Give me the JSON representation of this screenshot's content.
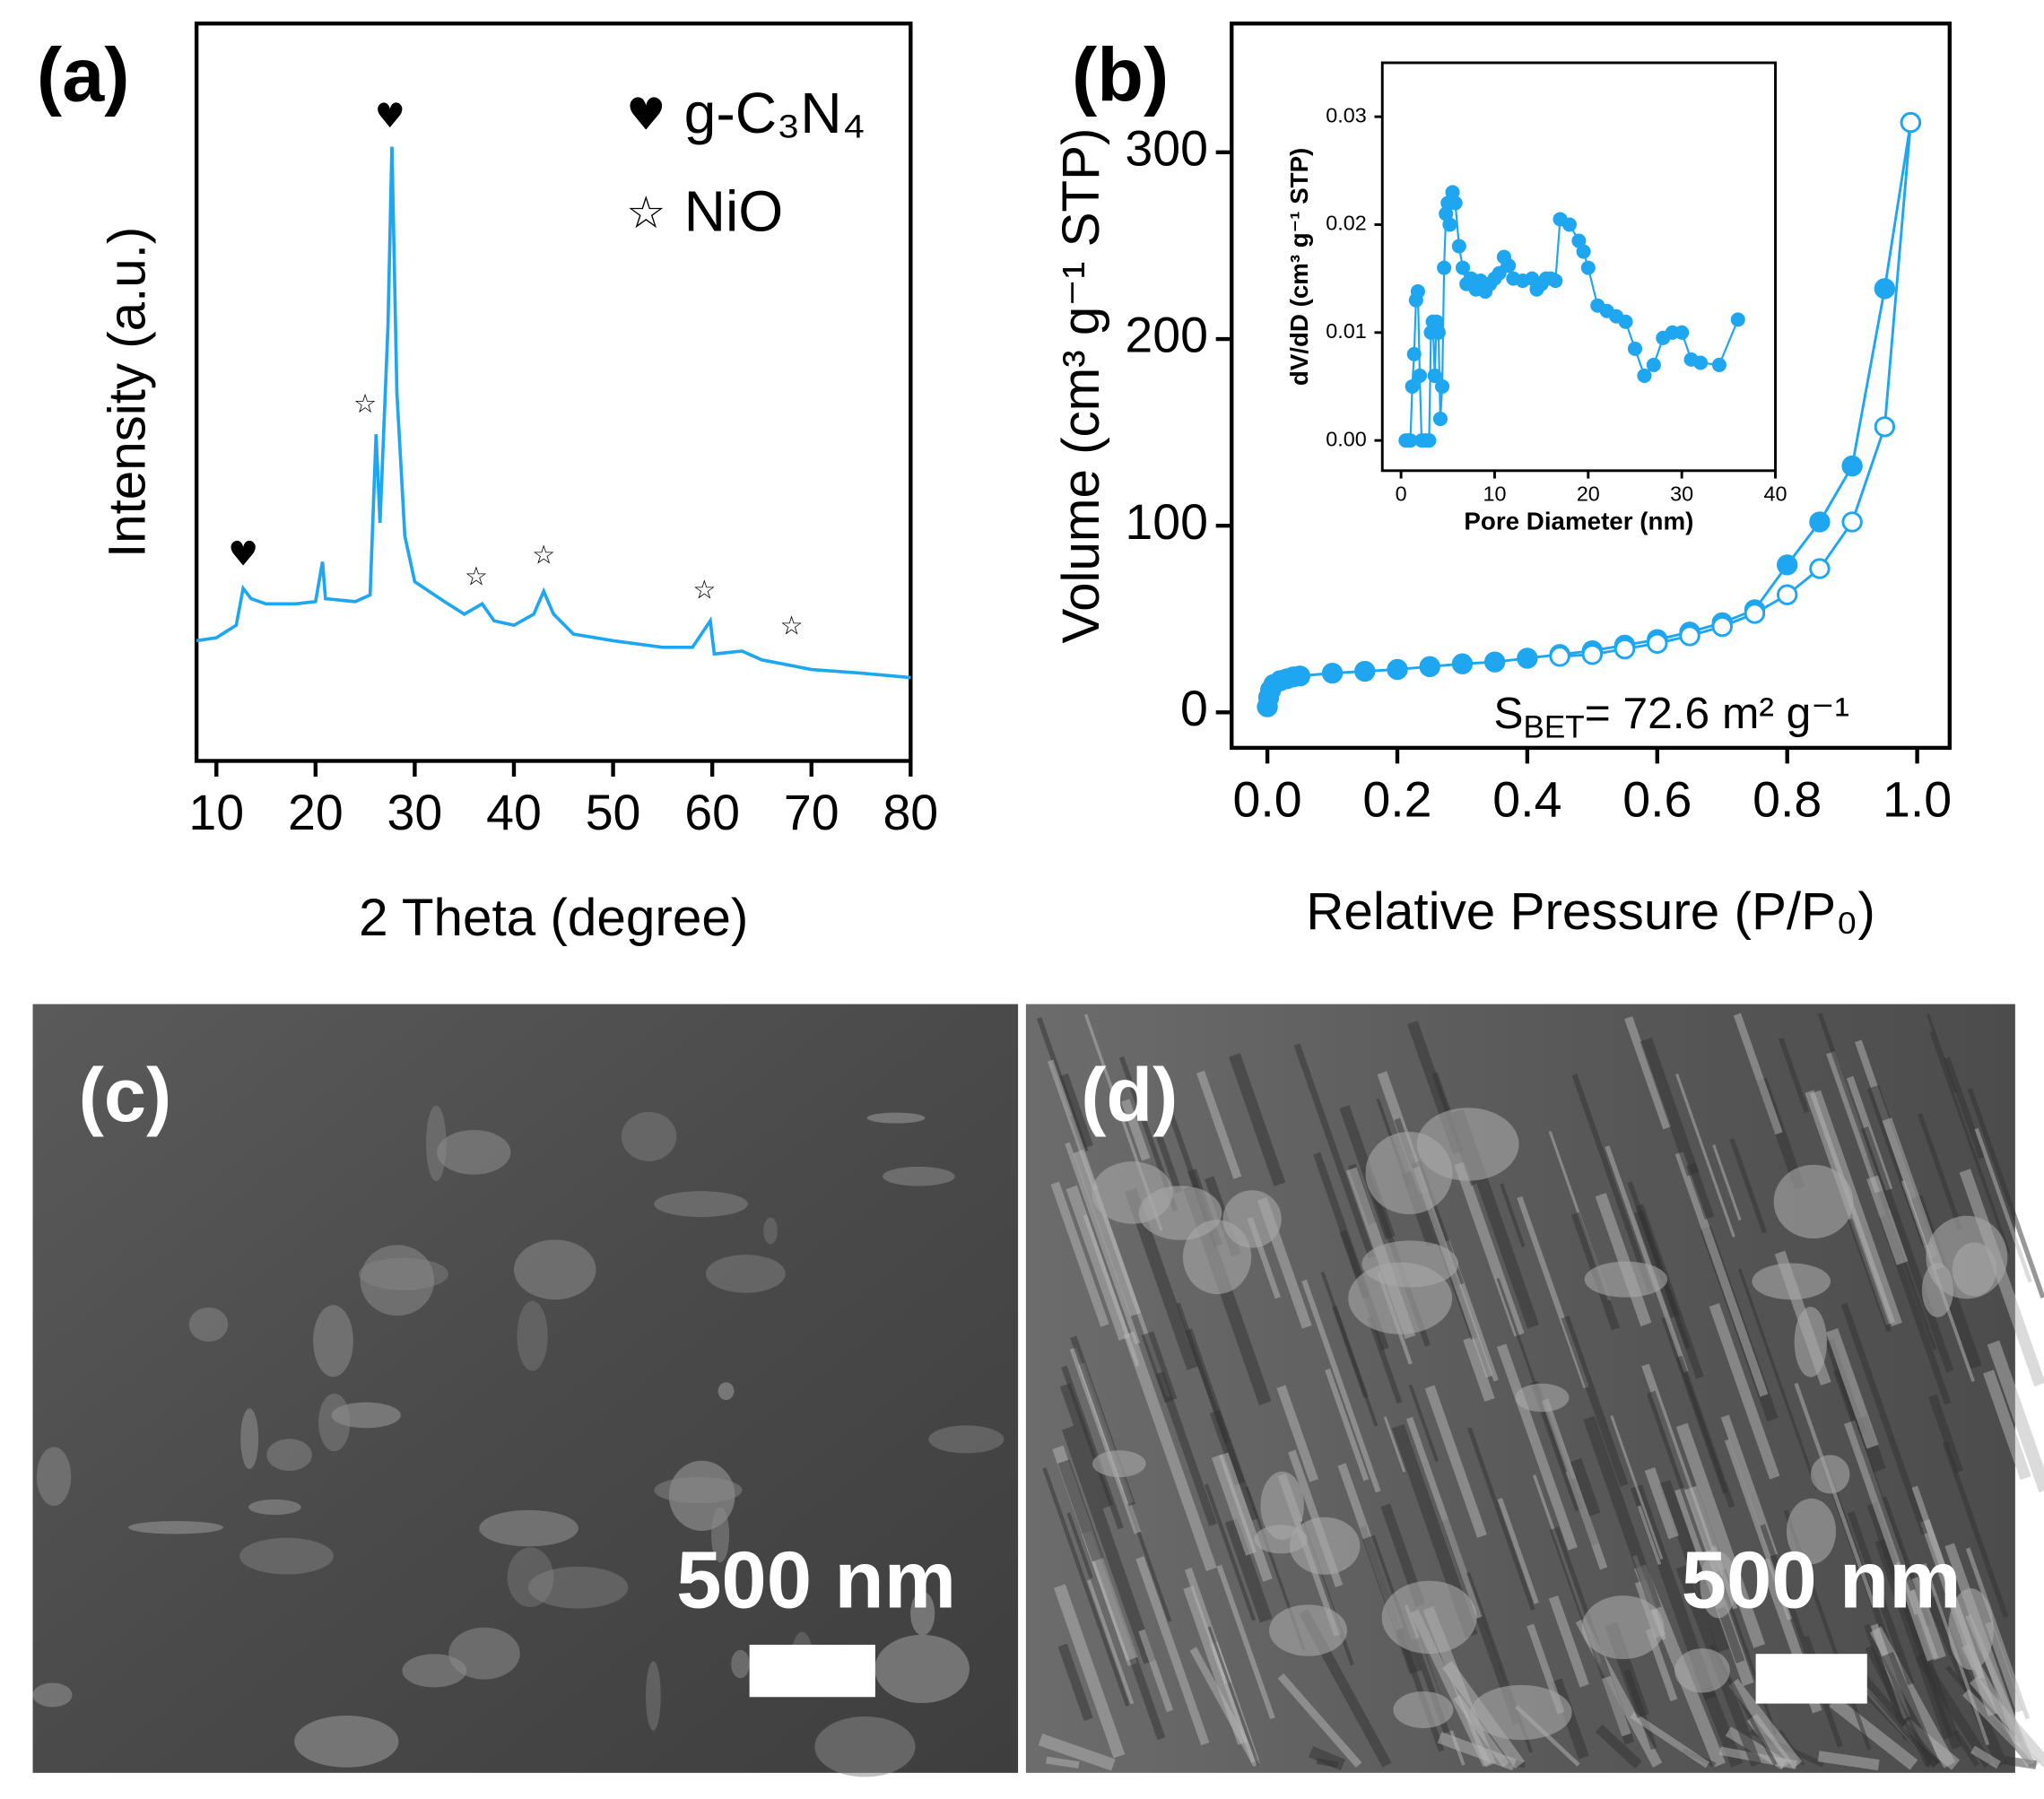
{
  "chart_data": [
    {
      "type": "line",
      "panel_label": "(a)",
      "x_label": "2 Theta (degree)",
      "y_label": "Intensity (a.u.)",
      "xlim": [
        8,
        80
      ],
      "xticks": [
        10,
        20,
        30,
        40,
        50,
        60,
        70,
        80
      ],
      "ylim": [
        0,
        100
      ],
      "series": [
        {
          "color": "#1ea7f0",
          "x": [
            8,
            10,
            12,
            12.7,
            13.5,
            15,
            18,
            20,
            20.7,
            21,
            24,
            25.5,
            26.1,
            26.5,
            27.3,
            27.7,
            28.2,
            29,
            30,
            33,
            35,
            36.8,
            38,
            40,
            42,
            43,
            44,
            46,
            50,
            55,
            58,
            59.8,
            60.2,
            63,
            65,
            70,
            75,
            80
          ],
          "values": [
            16.3,
            16.7,
            18.4,
            23.4,
            22.0,
            21.3,
            21.3,
            21.6,
            27.0,
            22.0,
            21.6,
            22.5,
            44.3,
            32.3,
            58.9,
            83.3,
            50.0,
            30.5,
            24.3,
            21.6,
            19.9,
            21.3,
            19.0,
            18.4,
            19.9,
            23.0,
            19.9,
            17.2,
            16.3,
            15.4,
            15.4,
            19.0,
            14.5,
            14.9,
            13.7,
            12.4,
            11.9,
            11.3
          ]
        }
      ],
      "annotations": [
        {
          "text": "♥",
          "x": 12.7,
          "y": 27.8
        },
        {
          "text": "♥",
          "x": 27.5,
          "y": 87.2
        },
        {
          "text": "☆",
          "x": 25.0,
          "y": 48.2
        },
        {
          "text": "☆",
          "x": 36.2,
          "y": 24.8
        },
        {
          "text": "☆",
          "x": 43.0,
          "y": 27.7
        },
        {
          "text": "☆",
          "x": 59.2,
          "y": 23.0
        },
        {
          "text": "☆",
          "x": 68.0,
          "y": 18.1
        }
      ],
      "legend": [
        {
          "symbol": "♥",
          "label": "g-C₃N₄"
        },
        {
          "symbol": "☆",
          "label": "NiO"
        }
      ]
    },
    {
      "type": "line",
      "panel_label": "(b)",
      "x_label": "Relative Pressure (P/P₀)",
      "y_label": "Volume (cm³ g⁻¹ STP)",
      "xlim": [
        -0.055,
        1.05
      ],
      "xticks": [
        {
          "value": 0,
          "label": "0.0"
        },
        0.2,
        0.4,
        0.6,
        0.8,
        {
          "value": 1,
          "label": "1.0"
        }
      ],
      "ylim": [
        -19,
        369
      ],
      "yticks": [
        0,
        100,
        200,
        300
      ],
      "annotation": [
        "S",
        "BET",
        "= 72.6 m² g⁻¹"
      ],
      "series": [
        {
          "color": "#1ea7f0",
          "marker": "filled",
          "x": [
            0.0,
            0.002,
            0.005,
            0.01,
            0.02,
            0.03,
            0.04,
            0.05,
            0.1,
            0.15,
            0.2,
            0.25,
            0.3,
            0.35,
            0.4,
            0.45,
            0.5,
            0.55,
            0.6,
            0.65,
            0.7,
            0.75,
            0.8,
            0.85,
            0.9,
            0.95,
            0.99
          ],
          "values": [
            3,
            8,
            12,
            15,
            17,
            18,
            19,
            19.5,
            21,
            22,
            23,
            24.5,
            26,
            27,
            29,
            31,
            33,
            36,
            39,
            43,
            48,
            55,
            79,
            102,
            132,
            227,
            316
          ]
        },
        {
          "color": "#1ea7f0",
          "marker": "open",
          "x": [
            0.99,
            0.95,
            0.9,
            0.85,
            0.8,
            0.75,
            0.7,
            0.65,
            0.6,
            0.55,
            0.5,
            0.45
          ],
          "values": [
            316,
            153,
            102,
            77,
            63,
            53,
            46,
            41,
            37,
            34,
            31,
            30
          ]
        }
      ]
    },
    {
      "type": "line",
      "x_label": "Pore Diameter (nm)",
      "y_label": "dV/dD (cm³ g⁻¹ STP)",
      "xlim": [
        -2,
        40
      ],
      "xticks": [
        0,
        10,
        20,
        30,
        40
      ],
      "ylim": [
        -0.0028,
        0.035
      ],
      "yticks": [
        {
          "value": 0,
          "label": "0.00"
        },
        0.01,
        0.02,
        0.03
      ],
      "series": [
        {
          "color": "#1ea7f0",
          "marker": "filled",
          "x": [
            0.5,
            0.8,
            1.0,
            1.2,
            1.4,
            1.6,
            1.8,
            2.0,
            2.2,
            2.6,
            3.0,
            3.2,
            3.4,
            3.6,
            3.8,
            4.0,
            4.2,
            4.4,
            4.6,
            4.8,
            5.0,
            5.2,
            5.5,
            5.8,
            6.2,
            6.6,
            7,
            7.5,
            8,
            8.5,
            9,
            9.5,
            10,
            10.5,
            11,
            11.5,
            12,
            13,
            14,
            14.5,
            15,
            15.5,
            16,
            16.5,
            17,
            18,
            19,
            19.5,
            20,
            21,
            22,
            23,
            24,
            25,
            26,
            27,
            28,
            29,
            30,
            31,
            32,
            34,
            36
          ],
          "values": [
            0.0,
            0.0,
            0.0,
            0.005,
            0.008,
            0.013,
            0.0138,
            0.006,
            0.0,
            0.0,
            0.0,
            0.01,
            0.011,
            0.006,
            0.011,
            0.01,
            0.002,
            0.005,
            0.016,
            0.021,
            0.022,
            0.02,
            0.023,
            0.022,
            0.018,
            0.016,
            0.0145,
            0.015,
            0.014,
            0.0148,
            0.0138,
            0.0145,
            0.015,
            0.0155,
            0.017,
            0.0162,
            0.015,
            0.0148,
            0.015,
            0.014,
            0.0145,
            0.015,
            0.015,
            0.0148,
            0.0205,
            0.02,
            0.0185,
            0.0175,
            0.016,
            0.0125,
            0.012,
            0.0115,
            0.011,
            0.0085,
            0.006,
            0.007,
            0.0095,
            0.01,
            0.01,
            0.0075,
            0.0072,
            0.007,
            0.0112
          ]
        }
      ]
    }
  ],
  "images": [
    {
      "label": "(c)",
      "scale_bar": "500 nm"
    },
    {
      "label": "(d)",
      "scale_bar": "500 nm"
    }
  ]
}
